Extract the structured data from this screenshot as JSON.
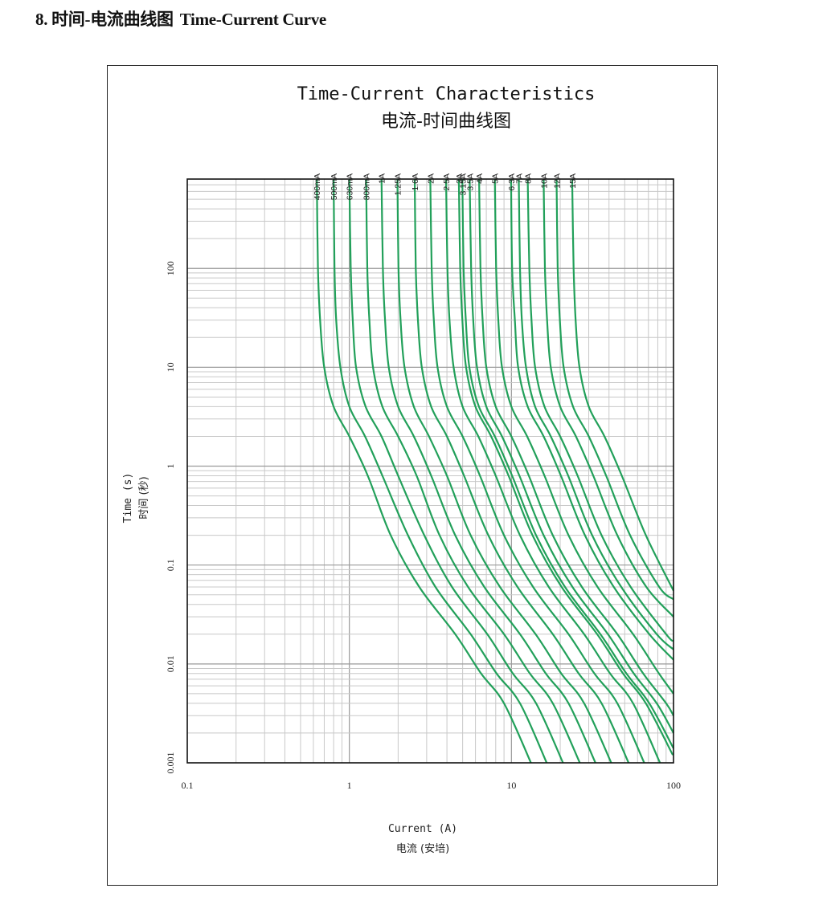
{
  "heading": {
    "number": "8. 时间-电流曲线图",
    "english": "Time-Current Curve"
  },
  "chart_data": {
    "type": "line",
    "title": "Time-Current Characteristics",
    "subtitle": "电流-时间曲线图",
    "xlabel": "Current (A)",
    "xlabel_cn": "电流 (安培)",
    "ylabel": "Time (s)",
    "ylabel_cn": "时间 (秒)",
    "x_scale": "log",
    "y_scale": "log",
    "xlim": [
      0.1,
      100
    ],
    "ylim": [
      0.001,
      800
    ],
    "x_ticks": [
      "0.1",
      "1",
      "10",
      "100"
    ],
    "y_ticks": [
      "0.001",
      "0.01",
      "0.1",
      "1",
      "10",
      "100"
    ],
    "grid": true,
    "line_color": "#22a05a",
    "series": [
      {
        "name": "400mA",
        "x": [
          0.63,
          0.64,
          0.66,
          0.7,
          0.8,
          1.0,
          1.3,
          1.8,
          2.7,
          4.5,
          6.5,
          9.0,
          13.2
        ],
        "y": [
          800,
          100,
          30,
          10,
          4,
          2,
          0.8,
          0.2,
          0.06,
          0.02,
          0.008,
          0.004,
          0.001
        ]
      },
      {
        "name": "500mA",
        "x": [
          0.8,
          0.81,
          0.83,
          0.88,
          1.0,
          1.25,
          1.6,
          2.3,
          3.4,
          5.6,
          8.1,
          11.3,
          16.5
        ],
        "y": [
          800,
          100,
          30,
          10,
          4,
          2,
          0.8,
          0.2,
          0.06,
          0.02,
          0.008,
          0.004,
          0.001
        ]
      },
      {
        "name": "630mA",
        "x": [
          1.0,
          1.02,
          1.05,
          1.1,
          1.26,
          1.58,
          2.0,
          2.9,
          4.3,
          7.1,
          10.2,
          14.2,
          20.8
        ],
        "y": [
          800,
          100,
          30,
          10,
          4,
          2,
          0.8,
          0.2,
          0.06,
          0.02,
          0.008,
          0.004,
          0.001
        ]
      },
      {
        "name": "800mA",
        "x": [
          1.27,
          1.29,
          1.33,
          1.4,
          1.6,
          2.0,
          2.6,
          3.6,
          5.4,
          9.0,
          13.0,
          18.0,
          26.4
        ],
        "y": [
          800,
          100,
          30,
          10,
          4,
          2,
          0.8,
          0.2,
          0.06,
          0.02,
          0.008,
          0.004,
          0.001
        ]
      },
      {
        "name": "1A",
        "x": [
          1.58,
          1.61,
          1.66,
          1.75,
          2.0,
          2.5,
          3.2,
          4.5,
          6.8,
          11.3,
          16.3,
          22.5,
          33.0
        ],
        "y": [
          800,
          100,
          30,
          10,
          4,
          2,
          0.8,
          0.2,
          0.06,
          0.02,
          0.008,
          0.004,
          0.001
        ]
      },
      {
        "name": "1.25A",
        "x": [
          1.98,
          2.01,
          2.07,
          2.19,
          2.5,
          3.1,
          4.0,
          5.6,
          8.5,
          14.1,
          20.3,
          28.1,
          41.3
        ],
        "y": [
          800,
          100,
          30,
          10,
          4,
          2,
          0.8,
          0.2,
          0.06,
          0.02,
          0.008,
          0.004,
          0.001
        ]
      },
      {
        "name": "1.6A",
        "x": [
          2.53,
          2.57,
          2.65,
          2.8,
          3.2,
          4.0,
          5.1,
          7.2,
          10.9,
          18.0,
          26.0,
          36.0,
          52.8
        ],
        "y": [
          800,
          100,
          30,
          10,
          4,
          2,
          0.8,
          0.2,
          0.06,
          0.02,
          0.008,
          0.004,
          0.001
        ]
      },
      {
        "name": "2A",
        "x": [
          3.16,
          3.22,
          3.32,
          3.5,
          4.0,
          5.0,
          6.4,
          9.0,
          13.6,
          22.5,
          32.5,
          45.0,
          66.0
        ],
        "y": [
          800,
          100,
          30,
          10,
          4,
          2,
          0.8,
          0.2,
          0.06,
          0.02,
          0.008,
          0.004,
          0.001
        ]
      },
      {
        "name": "2.5A",
        "x": [
          3.95,
          4.03,
          4.15,
          4.4,
          5.0,
          6.25,
          8.0,
          11.3,
          17.0,
          28.1,
          40.6,
          56.3,
          82.5
        ],
        "y": [
          800,
          100,
          30,
          10,
          4,
          2,
          0.8,
          0.2,
          0.06,
          0.02,
          0.008,
          0.004,
          0.001
        ]
      },
      {
        "name": "3A",
        "x": [
          4.74,
          4.83,
          4.98,
          5.25,
          6.0,
          7.5,
          9.6,
          13.5,
          20.4,
          33.8,
          48.8,
          67.5,
          99.0
        ],
        "y": [
          800,
          100,
          30,
          10,
          4,
          2,
          0.8,
          0.2,
          0.06,
          0.02,
          0.008,
          0.004,
          0.0012
        ]
      },
      {
        "name": "3.15A",
        "x": [
          4.98,
          5.07,
          5.23,
          5.5,
          6.3,
          7.9,
          10.1,
          14.2,
          21.4,
          35.4,
          51.2,
          70.9,
          100
        ],
        "y": [
          800,
          100,
          30,
          10,
          4,
          2,
          0.8,
          0.2,
          0.06,
          0.02,
          0.008,
          0.004,
          0.0014
        ]
      },
      {
        "name": "3.5A",
        "x": [
          5.53,
          5.64,
          5.81,
          6.13,
          7.0,
          8.75,
          11.2,
          15.8,
          23.8,
          39.4,
          56.9,
          78.8,
          100
        ],
        "y": [
          800,
          100,
          30,
          10,
          4,
          2,
          0.8,
          0.2,
          0.06,
          0.02,
          0.008,
          0.004,
          0.002
        ]
      },
      {
        "name": "4A",
        "x": [
          6.32,
          6.44,
          6.64,
          7.0,
          8.0,
          10.0,
          12.8,
          18.0,
          27.2,
          45.0,
          65.0,
          90.0,
          100
        ],
        "y": [
          800,
          100,
          30,
          10,
          4,
          2,
          0.8,
          0.2,
          0.06,
          0.02,
          0.008,
          0.004,
          0.003
        ]
      },
      {
        "name": "5A",
        "x": [
          7.9,
          8.05,
          8.3,
          8.75,
          10.0,
          12.5,
          16.0,
          22.5,
          34.0,
          56.3,
          81.3,
          100
        ],
        "y": [
          800,
          100,
          30,
          10,
          4,
          2,
          0.8,
          0.2,
          0.06,
          0.02,
          0.008,
          0.005
        ]
      },
      {
        "name": "6.3A",
        "x": [
          9.95,
          10.1,
          10.5,
          11.0,
          12.6,
          15.8,
          20.2,
          28.4,
          42.8,
          70.9,
          100
        ],
        "y": [
          800,
          100,
          30,
          10,
          4,
          2,
          0.8,
          0.2,
          0.06,
          0.02,
          0.011
        ]
      },
      {
        "name": "7A",
        "x": [
          11.1,
          11.3,
          11.6,
          12.3,
          14.0,
          17.5,
          22.4,
          31.5,
          47.6,
          78.8,
          100
        ],
        "y": [
          800,
          100,
          30,
          10,
          4,
          2,
          0.8,
          0.2,
          0.06,
          0.02,
          0.014
        ]
      },
      {
        "name": "8A",
        "x": [
          12.6,
          12.9,
          13.3,
          14.0,
          16.0,
          20.0,
          25.6,
          36.0,
          54.4,
          90.0,
          100
        ],
        "y": [
          800,
          100,
          30,
          10,
          4,
          2,
          0.8,
          0.2,
          0.06,
          0.02,
          0.017
        ]
      },
      {
        "name": "10A",
        "x": [
          15.8,
          16.1,
          16.6,
          17.5,
          20.0,
          25.0,
          32.0,
          45.0,
          68.0,
          100
        ],
        "y": [
          800,
          100,
          30,
          10,
          4,
          2,
          0.8,
          0.2,
          0.06,
          0.03
        ]
      },
      {
        "name": "12A",
        "x": [
          19.0,
          19.3,
          19.9,
          21.0,
          24.0,
          30.0,
          38.4,
          54.0,
          81.6,
          100
        ],
        "y": [
          800,
          100,
          30,
          10,
          4,
          2,
          0.8,
          0.2,
          0.06,
          0.045
        ]
      },
      {
        "name": "15A",
        "x": [
          23.7,
          24.2,
          24.9,
          26.3,
          30.0,
          37.5,
          48.0,
          67.5,
          100
        ],
        "y": [
          800,
          100,
          30,
          10,
          4,
          2,
          0.8,
          0.2,
          0.055
        ]
      }
    ]
  }
}
